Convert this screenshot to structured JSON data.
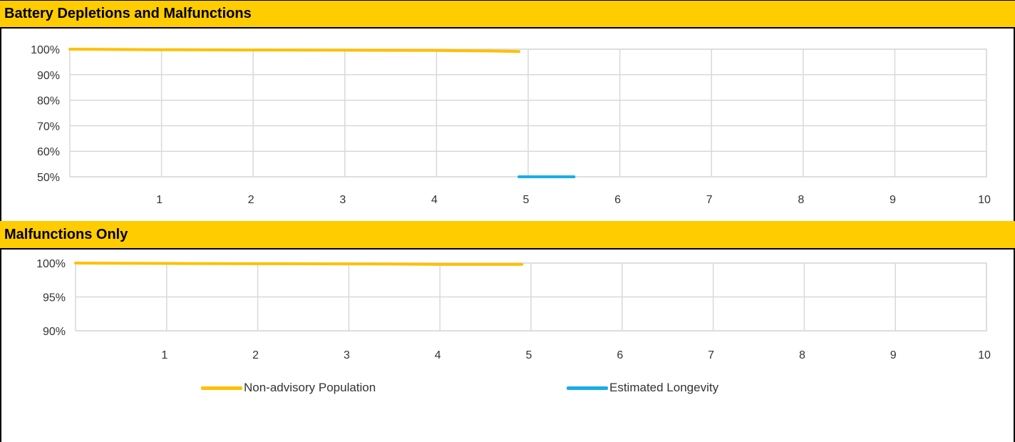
{
  "panels": {
    "top_title": "Battery Depletions and Malfunctions",
    "bottom_title": "Malfunctions Only"
  },
  "legend": {
    "items": [
      {
        "label": "Non-advisory Population",
        "color": "#FFC000"
      },
      {
        "label": "Estimated Longevity",
        "color": "#1AADE4"
      }
    ]
  },
  "colors": {
    "header_bg": "#FFCC00",
    "grid": "#D9D9D9"
  },
  "chart_data": [
    {
      "type": "line",
      "title": "Battery Depletions and Malfunctions",
      "xlabel": "",
      "ylabel": "",
      "x_ticks": [
        "1",
        "2",
        "3",
        "4",
        "5",
        "6",
        "7",
        "8",
        "9",
        "10"
      ],
      "y_ticks": [
        "50%",
        "60%",
        "70%",
        "80%",
        "90%",
        "100%"
      ],
      "xlim": [
        0,
        10
      ],
      "ylim": [
        50,
        100
      ],
      "grid": true,
      "series": [
        {
          "name": "Non-advisory Population",
          "color": "#FFC000",
          "x": [
            0.0,
            1.0,
            2.0,
            3.0,
            4.0,
            4.6,
            4.9
          ],
          "y": [
            100.0,
            99.8,
            99.7,
            99.6,
            99.5,
            99.3,
            99.1
          ]
        },
        {
          "name": "Estimated Longevity",
          "color": "#1AADE4",
          "x": [
            4.9,
            5.5
          ],
          "y": [
            50.0,
            50.0
          ]
        }
      ]
    },
    {
      "type": "line",
      "title": "Malfunctions Only",
      "xlabel": "",
      "ylabel": "",
      "x_ticks": [
        "1",
        "2",
        "3",
        "4",
        "5",
        "6",
        "7",
        "8",
        "9",
        "10"
      ],
      "y_ticks": [
        "90%",
        "95%",
        "100%"
      ],
      "xlim": [
        0,
        10
      ],
      "ylim": [
        90,
        100
      ],
      "grid": true,
      "series": [
        {
          "name": "Non-advisory Population",
          "color": "#FFC000",
          "x": [
            0.0,
            1.0,
            2.0,
            3.0,
            3.5,
            4.0,
            4.9
          ],
          "y": [
            100.0,
            99.95,
            99.9,
            99.88,
            99.85,
            99.8,
            99.8
          ]
        }
      ]
    }
  ]
}
